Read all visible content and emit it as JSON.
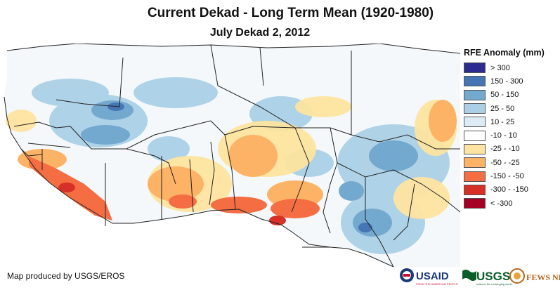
{
  "title": "Current Dekad - Long Term Mean (1920-1980)",
  "subtitle": "July Dekad 2, 2012",
  "legend": {
    "title": "RFE Anomaly (mm)",
    "items": [
      {
        "label": "> 300",
        "color": "#2b2c8e"
      },
      {
        "label": "150 - 300",
        "color": "#4575b4"
      },
      {
        "label": "50 - 150",
        "color": "#74a9cf"
      },
      {
        "label": "25 - 50",
        "color": "#abd0e6"
      },
      {
        "label": "10 - 25",
        "color": "#dcebf5"
      },
      {
        "label": "-10 - 10",
        "color": "#ffffff"
      },
      {
        "label": "-25 - -10",
        "color": "#fee4a0"
      },
      {
        "label": "-50 - -25",
        "color": "#fdb366"
      },
      {
        "label": "-150 - -50",
        "color": "#f46d43"
      },
      {
        "label": "-300 - -150",
        "color": "#d73027"
      },
      {
        "label": "< -300",
        "color": "#a50026"
      }
    ]
  },
  "credit": "Map produced by USGS/EROS",
  "logos": {
    "usaid": "USAID",
    "usaid_tagline": "FROM THE AMERICAN PEOPLE",
    "usgs": "USGS",
    "usgs_tagline": "science for a changing world",
    "fewsnet": "FEWS NET"
  }
}
